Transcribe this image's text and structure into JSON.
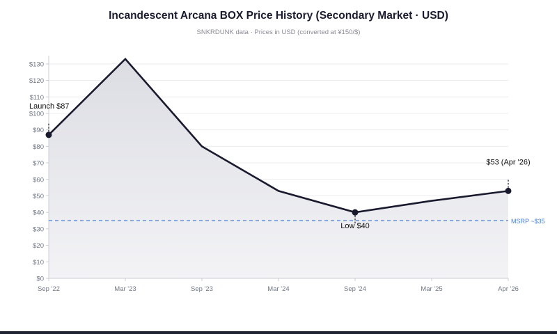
{
  "chart_data": {
    "type": "line",
    "title": "Incandescent Arcana BOX Price History (Secondary Market · USD)",
    "subtitle": "SNKRDUNK data · Prices in USD (converted at ¥150/$)",
    "x": [
      "Sep '22",
      "Mar '23",
      "Sep '23",
      "Mar '24",
      "Sep '24",
      "Mar '25",
      "Apr '26"
    ],
    "series": [
      {
        "values": [
          87,
          133,
          80,
          53,
          40,
          47,
          53
        ]
      }
    ],
    "ylim": [
      0,
      135
    ],
    "yticks": [
      0,
      10,
      20,
      30,
      40,
      50,
      60,
      70,
      80,
      90,
      100,
      110,
      120,
      130
    ],
    "ytick_labels": [
      "$0",
      "$10",
      "$20",
      "$30",
      "$40",
      "$50",
      "$60",
      "$70",
      "$80",
      "$90",
      "$100",
      "$110",
      "$120",
      "$130"
    ],
    "grid": true,
    "area_fill": true,
    "annotations": [
      {
        "x_index": 0,
        "text": "Launch $87",
        "position": "above"
      },
      {
        "x_index": 4,
        "text": "Low $40",
        "position": "below"
      },
      {
        "x_index": 6,
        "text": "$53 (Apr '26)",
        "position": "above"
      }
    ],
    "reference_line": {
      "value": 35,
      "label": "MSRP ~$35",
      "style": "dashed"
    },
    "colors": {
      "line": "#1a1a2e",
      "area": "#e6e7ec",
      "reference": "#4a7fd0",
      "grid": "#ececf0"
    }
  }
}
